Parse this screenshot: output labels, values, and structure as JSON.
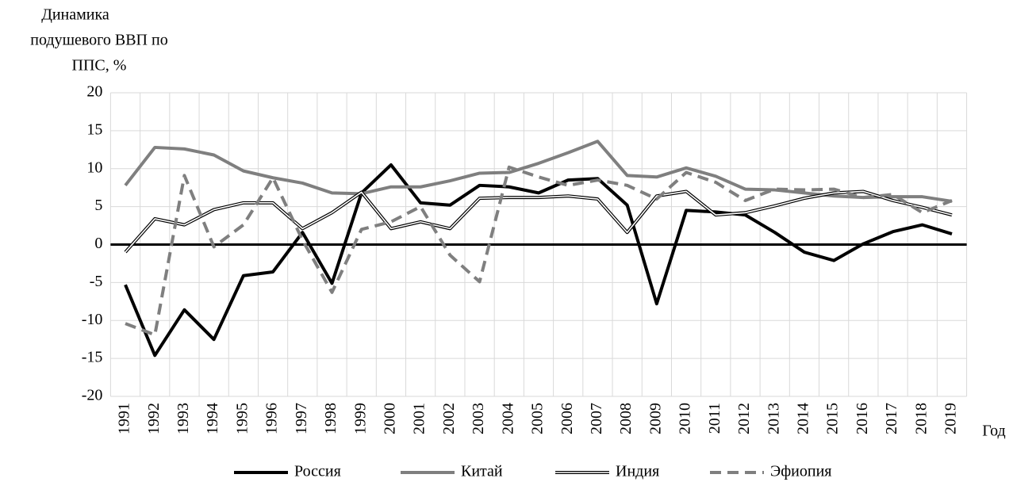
{
  "chart_data": {
    "type": "line",
    "ylabel": [
      "Динамика",
      "подушевого ВВП по",
      "ППС, %"
    ],
    "xlabel": "Год",
    "categories": [
      "1991",
      "1992",
      "1993",
      "1994",
      "1995",
      "1996",
      "1997",
      "1998",
      "1999",
      "2000",
      "2001",
      "2002",
      "2003",
      "2004",
      "2005",
      "2006",
      "2007",
      "2008",
      "2009",
      "2010",
      "2011",
      "2012",
      "2013",
      "2014",
      "2015",
      "2016",
      "2017",
      "2018",
      "2019"
    ],
    "series": [
      {
        "name": "Россия",
        "color": "#000000",
        "line_style": "solid",
        "values": [
          -5.3,
          -14.6,
          -8.6,
          -12.5,
          -4.1,
          -3.6,
          1.6,
          -5.1,
          6.8,
          10.5,
          5.5,
          5.2,
          7.8,
          7.6,
          6.8,
          8.5,
          8.7,
          5.2,
          -7.8,
          4.5,
          4.3,
          3.9,
          1.6,
          -1.0,
          -2.1,
          0.1,
          1.7,
          2.6,
          1.4
        ]
      },
      {
        "name": "Китай",
        "color": "#7f7f7f",
        "line_style": "solid",
        "values": [
          7.8,
          12.8,
          12.6,
          11.8,
          9.7,
          8.8,
          8.1,
          6.8,
          6.7,
          7.6,
          7.6,
          8.4,
          9.4,
          9.5,
          10.7,
          12.1,
          13.6,
          9.1,
          8.9,
          10.1,
          9.0,
          7.3,
          7.2,
          6.8,
          6.4,
          6.2,
          6.3,
          6.3,
          5.7
        ]
      },
      {
        "name": "Индия",
        "color": "#000000",
        "line_style": "double",
        "values": [
          -1.0,
          3.4,
          2.6,
          4.6,
          5.5,
          5.5,
          2.1,
          4.2,
          6.9,
          2.1,
          3.0,
          2.1,
          6.1,
          6.2,
          6.2,
          6.4,
          6.0,
          1.6,
          6.4,
          7.0,
          3.9,
          4.2,
          5.1,
          6.1,
          6.8,
          7.0,
          5.8,
          4.9,
          3.9
        ]
      },
      {
        "name": "Эфиопия",
        "color": "#7f7f7f",
        "line_style": "dashed",
        "values": [
          -10.4,
          -11.9,
          9.1,
          -0.3,
          2.6,
          8.8,
          0.6,
          -6.3,
          2.0,
          3.0,
          5.0,
          -1.4,
          -4.9,
          10.2,
          8.9,
          7.8,
          8.5,
          7.8,
          6.0,
          9.5,
          8.2,
          5.8,
          7.3,
          7.2,
          7.3,
          6.2,
          6.6,
          4.2,
          5.8
        ]
      }
    ],
    "ylim": [
      -20,
      20
    ],
    "yticks": [
      -20,
      -15,
      -10,
      -5,
      0,
      5,
      10,
      15,
      20
    ],
    "grid": true,
    "legend": "bottom"
  }
}
